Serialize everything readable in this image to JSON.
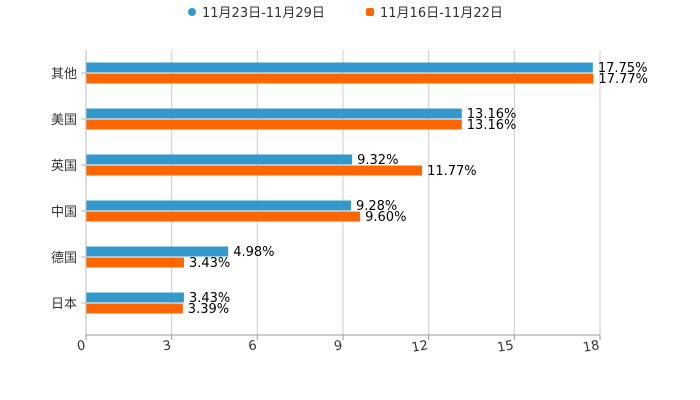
{
  "chart_data": {
    "type": "bar",
    "orientation": "horizontal",
    "categories": [
      "其他",
      "美国",
      "英国",
      "中国",
      "德国",
      "日本"
    ],
    "series": [
      {
        "name": "11月23日-11月29日",
        "color": "#3399cc",
        "values": [
          17.75,
          13.16,
          9.32,
          9.28,
          4.98,
          3.43
        ],
        "labels": [
          "17.75%",
          "13.16%",
          "9.32%",
          "9.28%",
          "4.98%",
          "3.43%"
        ]
      },
      {
        "name": "11月16日-11月22日",
        "color": "#ff6600",
        "values": [
          17.77,
          13.16,
          11.77,
          9.6,
          3.43,
          3.39
        ],
        "labels": [
          "17.77%",
          "13.16%",
          "11.77%",
          "9.60%",
          "3.43%",
          "3.39%"
        ]
      }
    ],
    "xlim": [
      0,
      18
    ],
    "xticks": [
      "0",
      "3",
      "6",
      "9",
      "12",
      "15",
      "18"
    ],
    "legend_position": "top-center",
    "grid": true,
    "title": "",
    "xlabel": "",
    "ylabel": ""
  }
}
